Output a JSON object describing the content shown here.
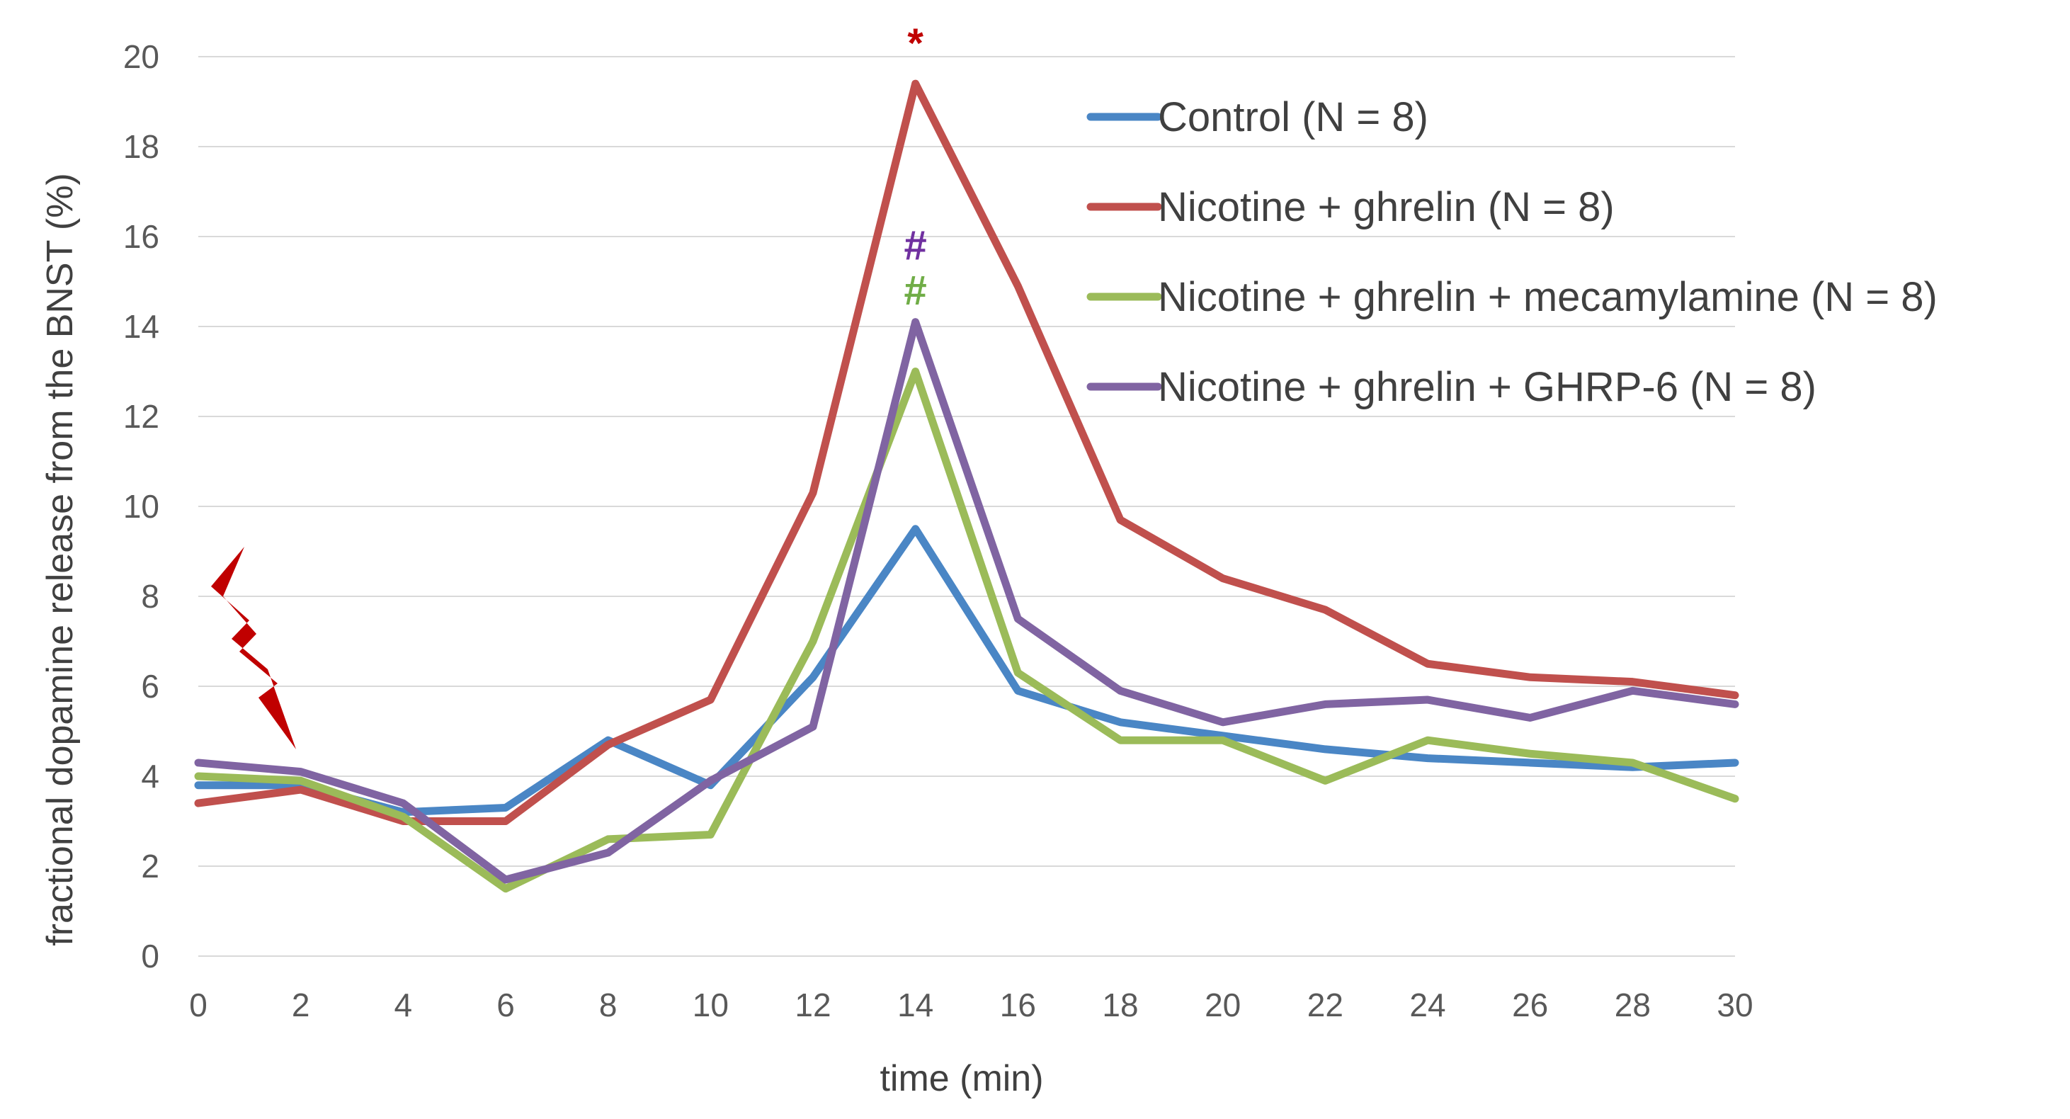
{
  "chart_data": {
    "type": "line",
    "title": "",
    "xlabel": "time (min)",
    "ylabel": "fractional dopamine release from the BNST (%)",
    "x": [
      0,
      2,
      4,
      6,
      8,
      10,
      12,
      14,
      16,
      18,
      20,
      22,
      24,
      26,
      28,
      30
    ],
    "xlim": [
      0,
      30
    ],
    "ylim": [
      0,
      20
    ],
    "xticks": [
      "0",
      "2",
      "4",
      "6",
      "8",
      "10",
      "12",
      "14",
      "16",
      "18",
      "20",
      "22",
      "24",
      "26",
      "28",
      "30"
    ],
    "yticks": [
      "0",
      "2",
      "4",
      "6",
      "8",
      "10",
      "12",
      "14",
      "16",
      "18",
      "20"
    ],
    "grid": true,
    "legend_position": "top-right",
    "series": [
      {
        "name": "Control (N = 8)",
        "color": "#4a86c5",
        "values": [
          3.8,
          3.8,
          3.2,
          3.3,
          4.8,
          3.8,
          6.2,
          9.5,
          5.9,
          5.2,
          4.9,
          4.6,
          4.4,
          4.3,
          4.2,
          4.3
        ]
      },
      {
        "name": "Nicotine + ghrelin (N = 8)",
        "color": "#c0504d",
        "values": [
          3.4,
          3.7,
          3.0,
          3.0,
          4.7,
          5.7,
          10.3,
          19.4,
          14.9,
          9.7,
          8.4,
          7.7,
          6.5,
          6.2,
          6.1,
          5.8
        ]
      },
      {
        "name": "Nicotine + ghrelin + mecamylamine (N = 8)",
        "color": "#9bbb59",
        "values": [
          4.0,
          3.9,
          3.1,
          1.5,
          2.6,
          2.7,
          7.0,
          13.0,
          6.3,
          4.8,
          4.8,
          3.9,
          4.8,
          4.5,
          4.3,
          3.5
        ]
      },
      {
        "name": "Nicotine + ghrelin + GHRP-6 (N = 8)",
        "color": "#8064a2",
        "values": [
          4.3,
          4.1,
          3.4,
          1.7,
          2.3,
          3.9,
          5.1,
          14.1,
          7.5,
          5.9,
          5.2,
          5.6,
          5.7,
          5.3,
          5.9,
          5.6
        ]
      }
    ],
    "annotations": [
      {
        "text": "*",
        "x": 14,
        "y": 20.3,
        "color": "#c00000"
      },
      {
        "text": "#",
        "x": 14,
        "y": 15.8,
        "color": "#7030a0"
      },
      {
        "text": "#",
        "x": 14,
        "y": 14.8,
        "color": "#70ad47"
      }
    ],
    "stimulus_marker": {
      "shape": "lightning-bolt",
      "color": "#c00000"
    }
  }
}
